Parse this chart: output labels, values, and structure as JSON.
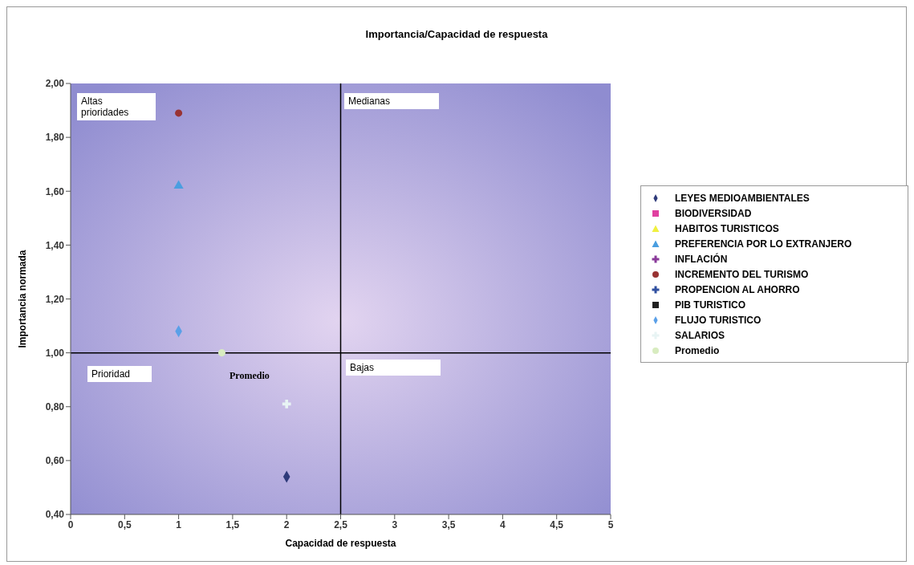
{
  "chart_data": {
    "type": "scatter",
    "title": "Importancia/Capacidad de respuesta",
    "xlabel": "Capacidad de respuesta",
    "ylabel": "Importancia normada",
    "xlim": [
      0,
      5
    ],
    "xticks": [
      0,
      {
        "value": 0.5,
        "label": "0,5"
      },
      1,
      {
        "value": 1.5,
        "label": "1,5"
      },
      2,
      {
        "value": 2.5,
        "label": "2,5"
      },
      3,
      {
        "value": 3.5,
        "label": "3,5"
      },
      4,
      {
        "value": 4.5,
        "label": "4,5"
      },
      5
    ],
    "ylim": [
      0.4,
      2.0
    ],
    "yticks": [
      {
        "value": 0.4,
        "label": "0,40"
      },
      {
        "value": 0.6,
        "label": "0,60"
      },
      {
        "value": 0.8,
        "label": "0,80"
      },
      {
        "value": 1.0,
        "label": "1,00"
      },
      {
        "value": 1.2,
        "label": "1,20"
      },
      {
        "value": 1.4,
        "label": "1,40"
      },
      {
        "value": 1.6,
        "label": "1,60"
      },
      {
        "value": 1.8,
        "label": "1,80"
      },
      {
        "value": 2.0,
        "label": "2,00"
      }
    ],
    "grid": false,
    "legend": "right",
    "ref_lines": [
      {
        "axis": "y",
        "value": 1.0,
        "color": "#000000"
      },
      {
        "axis": "x",
        "value": 2.5,
        "color": "#000000"
      }
    ],
    "annotations": [
      "Altas prioridades",
      "Medianas",
      "Prioridad",
      "Bajas",
      "Promedio"
    ],
    "series": [
      {
        "name": "LEYES MEDIOAMBIENTALES",
        "color": "#2e3a7a",
        "marker": "diamond",
        "x": [
          2
        ],
        "values": [
          0.54
        ]
      },
      {
        "name": "BIODIVERSIDAD",
        "color": "#e040a0",
        "marker": "square"
      },
      {
        "name": "HABITOS TURISTICOS",
        "color": "#f0f040",
        "marker": "triangle"
      },
      {
        "name": "PREFERENCIA POR LO EXTRANJERO",
        "color": "#4a9ee0",
        "marker": "triangle",
        "x": [
          1
        ],
        "values": [
          1.62
        ]
      },
      {
        "name": "INFLACIÓN",
        "color": "#8a3a9a",
        "marker": "cross"
      },
      {
        "name": "INCREMENTO DEL TURISMO",
        "color": "#993333",
        "marker": "circle",
        "x": [
          1
        ],
        "values": [
          1.89
        ]
      },
      {
        "name": "PROPENCION AL AHORRO",
        "color": "#3050a0",
        "marker": "cross"
      },
      {
        "name": "PIB TURISTICO",
        "color": "#202020",
        "marker": "square"
      },
      {
        "name": "FLUJO TURISTICO",
        "color": "#5aa0e8",
        "marker": "diamond",
        "x": [
          1
        ],
        "values": [
          1.08
        ]
      },
      {
        "name": "SALARIOS",
        "color": "#e8f4f4",
        "marker": "cross",
        "x": [
          2
        ],
        "values": [
          0.81
        ]
      },
      {
        "name": "Promedio",
        "color": "#d8ecc0",
        "marker": "circle",
        "x": [
          1.4
        ],
        "values": [
          1.0
        ]
      }
    ]
  }
}
